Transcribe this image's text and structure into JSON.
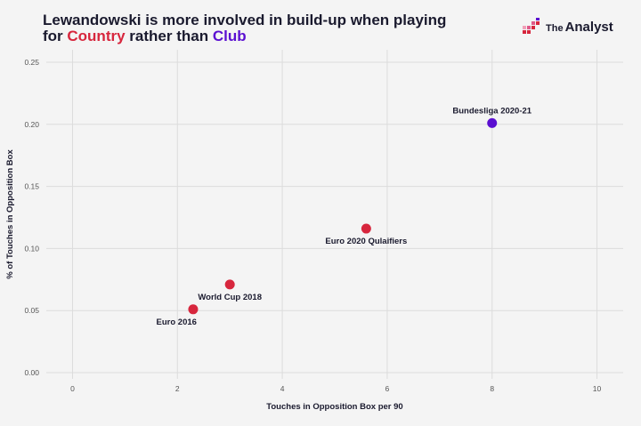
{
  "header": {
    "title_line1": "Lewandowski is more involved in build-up when playing",
    "title_for": "for ",
    "title_country": "Country",
    "title_mid": " rather than ",
    "title_club": "Club",
    "logo_the": "The",
    "logo_name": "Analyst"
  },
  "colors": {
    "country": "#d7263d",
    "club": "#5b0fd1",
    "grid": "#dcdcdc",
    "background": "#f4f4f4"
  },
  "chart_data": {
    "type": "scatter",
    "xlabel": "Touches in Opposition Box per 90",
    "ylabel": "% of Touches in Opposition Box",
    "xlim": [
      -0.5,
      10.5
    ],
    "ylim": [
      -0.005,
      0.26
    ],
    "x_ticks": [
      0,
      2,
      4,
      6,
      8,
      10
    ],
    "y_ticks": [
      0.0,
      0.05,
      0.1,
      0.15,
      0.2,
      0.25
    ],
    "x_tick_labels": [
      "0",
      "2",
      "4",
      "6",
      "8",
      "10"
    ],
    "y_tick_labels": [
      "0.00",
      "0.05",
      "0.10",
      "0.15",
      "0.20",
      "0.25"
    ],
    "grid": true,
    "points": [
      {
        "label": "Bundesliga 2020-21",
        "x": 8.0,
        "y": 0.201,
        "group": "club",
        "label_pos": "above"
      },
      {
        "label": "Euro 2020 Qulaifiers",
        "x": 5.6,
        "y": 0.116,
        "group": "country",
        "label_pos": "below"
      },
      {
        "label": "World Cup 2018",
        "x": 3.0,
        "y": 0.071,
        "group": "country",
        "label_pos": "below"
      },
      {
        "label": "Euro 2016",
        "x": 2.3,
        "y": 0.051,
        "group": "country",
        "label_pos": "below-left"
      }
    ]
  }
}
